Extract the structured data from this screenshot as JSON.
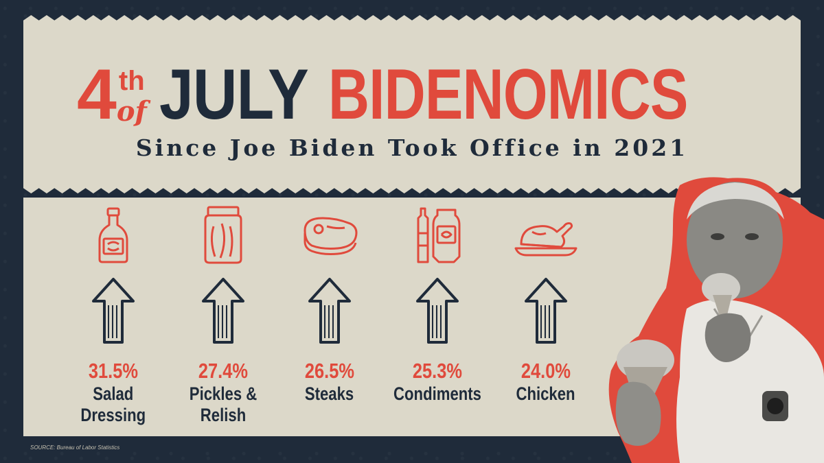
{
  "title": {
    "number": "4",
    "ordinal": "th",
    "of": "of",
    "word1": "JULY",
    "word2": "BIDENOMICS"
  },
  "subtitle": "Since Joe Biden Took Office in 2021",
  "items": [
    {
      "icon": "salad-dressing-bottle-icon",
      "pct": "31.5%",
      "label": "Salad\nDressing"
    },
    {
      "icon": "pickle-jar-icon",
      "pct": "27.4%",
      "label": "Pickles &\nRelish"
    },
    {
      "icon": "steak-icon",
      "pct": "26.5%",
      "label": "Steaks"
    },
    {
      "icon": "condiment-bottles-icon",
      "pct": "25.3%",
      "label": "Condiments"
    },
    {
      "icon": "roast-chicken-icon",
      "pct": "24.0%",
      "label": "Chicken"
    }
  ],
  "source": "SOURCE: Bureau of Labor Statistics",
  "colors": {
    "navy": "#1f2b3a",
    "red": "#e04a3c",
    "cream": "#dcd8c9"
  }
}
